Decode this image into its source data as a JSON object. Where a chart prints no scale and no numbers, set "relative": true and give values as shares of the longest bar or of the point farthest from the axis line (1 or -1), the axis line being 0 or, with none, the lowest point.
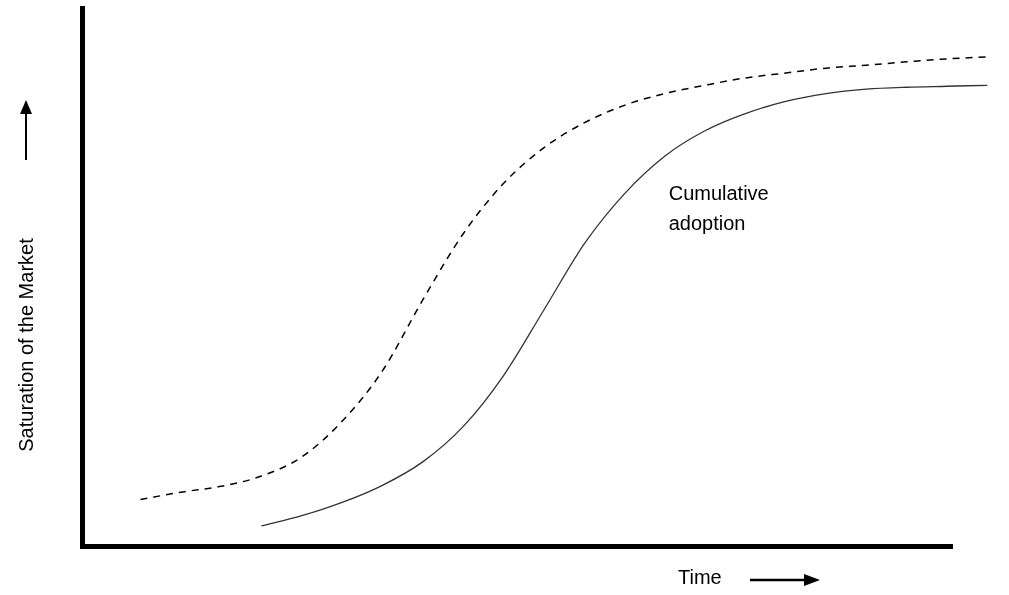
{
  "chart_data": {
    "type": "line",
    "relative": true,
    "xlabel": "Time",
    "ylabel": "Saturation of the Market",
    "categories": [
      null,
      null,
      null,
      null,
      null,
      null,
      null,
      null,
      null,
      null,
      null,
      null,
      null,
      null,
      null,
      null,
      null,
      null,
      null,
      null,
      null,
      null
    ],
    "series": [
      {
        "color": "#000000",
        "line_style": "dashed",
        "values": [
          0.095,
          0.11,
          0.122,
          0.143,
          0.182,
          0.255,
          0.358,
          0.503,
          0.638,
          0.741,
          0.814,
          0.865,
          0.901,
          0.925,
          0.942,
          0.957,
          0.967,
          0.977,
          0.983,
          0.99,
          0.996,
          1
        ]
      },
      {
        "name": "Cumulative adoption",
        "color": "#333333",
        "line_style": "solid",
        "values": [
          null,
          null,
          null,
          0.041,
          0.062,
          0.089,
          0.124,
          0.172,
          0.244,
          0.348,
          0.482,
          0.617,
          0.72,
          0.797,
          0.849,
          0.884,
          0.909,
          0.925,
          0.934,
          0.938,
          0.94,
          0.942
        ]
      }
    ],
    "legend": false,
    "grid": false,
    "marker": "none"
  }
}
